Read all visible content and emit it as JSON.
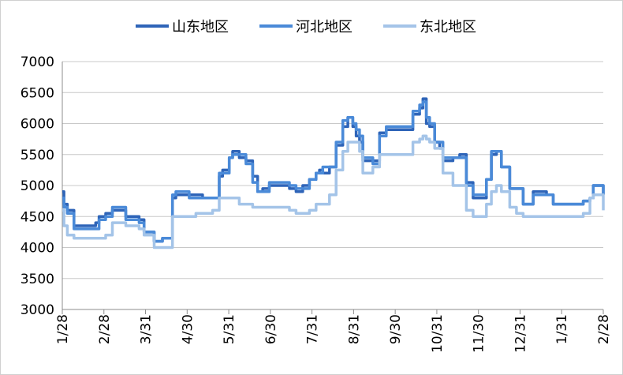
{
  "chart_data": {
    "type": "line",
    "title": "",
    "xlabel": "",
    "ylabel": "",
    "ylim": [
      3000,
      7000
    ],
    "y_ticks": [
      3000,
      3500,
      4000,
      4500,
      5000,
      5500,
      6000,
      6500,
      7000
    ],
    "x_tick_labels": [
      "1/28",
      "2/28",
      "3/31",
      "4/30",
      "5/31",
      "6/30",
      "7/31",
      "8/31",
      "9/30",
      "10/31",
      "11/30",
      "12/31",
      "1/31",
      "2/28"
    ],
    "grid": "horizontal",
    "legend_position": "top",
    "series": [
      {
        "name": "山东地区",
        "color": "#2e64b8",
        "values": [
          [
            0,
            4900
          ],
          [
            0.05,
            4700
          ],
          [
            0.15,
            4600
          ],
          [
            0.3,
            4600
          ],
          [
            0.35,
            4350
          ],
          [
            0.9,
            4350
          ],
          [
            1.0,
            4400
          ],
          [
            1.1,
            4500
          ],
          [
            1.3,
            4550
          ],
          [
            1.5,
            4600
          ],
          [
            1.7,
            4600
          ],
          [
            1.9,
            4500
          ],
          [
            2.3,
            4450
          ],
          [
            2.45,
            4250
          ],
          [
            2.6,
            4250
          ],
          [
            2.75,
            4100
          ],
          [
            3.0,
            4150
          ],
          [
            3.2,
            4150
          ],
          [
            3.3,
            4800
          ],
          [
            3.4,
            4850
          ],
          [
            3.6,
            4850
          ],
          [
            3.8,
            4850
          ],
          [
            4.0,
            4850
          ],
          [
            4.2,
            4800
          ],
          [
            4.5,
            4800
          ],
          [
            4.7,
            5150
          ],
          [
            4.8,
            5250
          ],
          [
            5.0,
            5450
          ],
          [
            5.1,
            5550
          ],
          [
            5.3,
            5450
          ],
          [
            5.5,
            5400
          ],
          [
            5.7,
            5150
          ],
          [
            5.85,
            4900
          ],
          [
            6.0,
            4950
          ],
          [
            6.2,
            5000
          ],
          [
            6.5,
            5000
          ],
          [
            6.8,
            4950
          ],
          [
            7.0,
            4900
          ],
          [
            7.2,
            5000
          ],
          [
            7.4,
            5100
          ],
          [
            7.6,
            5200
          ],
          [
            7.7,
            5250
          ],
          [
            7.8,
            5200
          ],
          [
            8.0,
            5300
          ],
          [
            8.2,
            5650
          ],
          [
            8.4,
            5950
          ],
          [
            8.55,
            6100
          ],
          [
            8.7,
            5950
          ],
          [
            8.8,
            5800
          ],
          [
            8.9,
            5700
          ],
          [
            9.0,
            5400
          ],
          [
            9.3,
            5400
          ],
          [
            9.5,
            5850
          ],
          [
            9.7,
            5900
          ],
          [
            10.0,
            5900
          ],
          [
            10.3,
            5900
          ],
          [
            10.5,
            6150
          ],
          [
            10.7,
            6250
          ],
          [
            10.8,
            6400
          ],
          [
            10.9,
            6000
          ],
          [
            11.0,
            5950
          ],
          [
            11.15,
            5700
          ],
          [
            11.3,
            5600
          ],
          [
            11.4,
            5400
          ],
          [
            11.7,
            5450
          ],
          [
            11.9,
            5500
          ],
          [
            12.1,
            5050
          ],
          [
            12.3,
            4800
          ],
          [
            12.55,
            4800
          ],
          [
            12.7,
            5100
          ],
          [
            12.85,
            5500
          ],
          [
            13.0,
            5550
          ],
          [
            13.15,
            5300
          ],
          [
            13.4,
            4950
          ],
          [
            13.6,
            4950
          ],
          [
            13.8,
            4700
          ],
          [
            14.0,
            4700
          ],
          [
            14.1,
            4900
          ],
          [
            14.3,
            4900
          ],
          [
            14.5,
            4850
          ],
          [
            14.7,
            4700
          ],
          [
            15.0,
            4700
          ],
          [
            15.3,
            4700
          ],
          [
            15.6,
            4750
          ],
          [
            15.8,
            4800
          ],
          [
            15.9,
            5000
          ],
          [
            16.05,
            5000
          ],
          [
            16.2,
            4850
          ]
        ]
      },
      {
        "name": "河北地区",
        "color": "#4a8ad8",
        "values": [
          [
            0,
            4800
          ],
          [
            0.05,
            4650
          ],
          [
            0.15,
            4550
          ],
          [
            0.3,
            4550
          ],
          [
            0.35,
            4300
          ],
          [
            0.9,
            4300
          ],
          [
            1.0,
            4300
          ],
          [
            1.1,
            4450
          ],
          [
            1.3,
            4500
          ],
          [
            1.5,
            4650
          ],
          [
            1.7,
            4650
          ],
          [
            1.9,
            4450
          ],
          [
            2.3,
            4400
          ],
          [
            2.45,
            4250
          ],
          [
            2.6,
            4250
          ],
          [
            2.75,
            4100
          ],
          [
            3.0,
            4150
          ],
          [
            3.2,
            4150
          ],
          [
            3.3,
            4850
          ],
          [
            3.4,
            4900
          ],
          [
            3.6,
            4900
          ],
          [
            3.8,
            4800
          ],
          [
            4.0,
            4800
          ],
          [
            4.2,
            4800
          ],
          [
            4.5,
            4800
          ],
          [
            4.7,
            5200
          ],
          [
            4.8,
            5200
          ],
          [
            5.0,
            5450
          ],
          [
            5.1,
            5500
          ],
          [
            5.3,
            5500
          ],
          [
            5.5,
            5350
          ],
          [
            5.7,
            5050
          ],
          [
            5.85,
            4900
          ],
          [
            6.0,
            4900
          ],
          [
            6.2,
            5050
          ],
          [
            6.5,
            5050
          ],
          [
            6.8,
            5000
          ],
          [
            7.0,
            4950
          ],
          [
            7.2,
            4950
          ],
          [
            7.4,
            5100
          ],
          [
            7.6,
            5200
          ],
          [
            7.7,
            5200
          ],
          [
            7.8,
            5300
          ],
          [
            8.0,
            5300
          ],
          [
            8.2,
            5700
          ],
          [
            8.4,
            6050
          ],
          [
            8.55,
            6100
          ],
          [
            8.7,
            6000
          ],
          [
            8.8,
            5900
          ],
          [
            8.9,
            5800
          ],
          [
            9.0,
            5450
          ],
          [
            9.3,
            5350
          ],
          [
            9.5,
            5800
          ],
          [
            9.7,
            5950
          ],
          [
            10.0,
            5950
          ],
          [
            10.3,
            5950
          ],
          [
            10.5,
            6200
          ],
          [
            10.7,
            6300
          ],
          [
            10.8,
            6350
          ],
          [
            10.9,
            6100
          ],
          [
            11.0,
            6000
          ],
          [
            11.15,
            5700
          ],
          [
            11.3,
            5700
          ],
          [
            11.4,
            5450
          ],
          [
            11.7,
            5450
          ],
          [
            11.9,
            5450
          ],
          [
            12.1,
            5000
          ],
          [
            12.3,
            4850
          ],
          [
            12.55,
            4850
          ],
          [
            12.7,
            5100
          ],
          [
            12.85,
            5550
          ],
          [
            13.0,
            5550
          ],
          [
            13.15,
            5300
          ],
          [
            13.4,
            4950
          ],
          [
            13.6,
            4950
          ],
          [
            13.8,
            4700
          ],
          [
            14.0,
            4700
          ],
          [
            14.1,
            4850
          ],
          [
            14.3,
            4850
          ],
          [
            14.5,
            4850
          ],
          [
            14.7,
            4700
          ],
          [
            15.0,
            4700
          ],
          [
            15.3,
            4700
          ],
          [
            15.6,
            4750
          ],
          [
            15.8,
            4800
          ],
          [
            15.9,
            5000
          ],
          [
            16.05,
            5000
          ],
          [
            16.2,
            4850
          ]
        ]
      },
      {
        "name": "东北地区",
        "color": "#a4c4e8",
        "values": [
          [
            0,
            4600
          ],
          [
            0.05,
            4350
          ],
          [
            0.15,
            4200
          ],
          [
            0.3,
            4200
          ],
          [
            0.35,
            4150
          ],
          [
            0.9,
            4150
          ],
          [
            1.0,
            4150
          ],
          [
            1.1,
            4150
          ],
          [
            1.3,
            4200
          ],
          [
            1.5,
            4400
          ],
          [
            1.7,
            4400
          ],
          [
            1.9,
            4350
          ],
          [
            2.3,
            4300
          ],
          [
            2.45,
            4200
          ],
          [
            2.6,
            4200
          ],
          [
            2.75,
            4000
          ],
          [
            3.0,
            4000
          ],
          [
            3.2,
            4000
          ],
          [
            3.3,
            4500
          ],
          [
            3.4,
            4500
          ],
          [
            3.6,
            4500
          ],
          [
            3.8,
            4500
          ],
          [
            4.0,
            4550
          ],
          [
            4.2,
            4550
          ],
          [
            4.5,
            4600
          ],
          [
            4.7,
            4800
          ],
          [
            4.8,
            4800
          ],
          [
            5.0,
            4800
          ],
          [
            5.1,
            4800
          ],
          [
            5.3,
            4700
          ],
          [
            5.5,
            4700
          ],
          [
            5.7,
            4650
          ],
          [
            5.85,
            4650
          ],
          [
            6.0,
            4650
          ],
          [
            6.2,
            4650
          ],
          [
            6.5,
            4650
          ],
          [
            6.8,
            4600
          ],
          [
            7.0,
            4550
          ],
          [
            7.2,
            4550
          ],
          [
            7.4,
            4600
          ],
          [
            7.6,
            4700
          ],
          [
            7.7,
            4700
          ],
          [
            7.8,
            4700
          ],
          [
            8.0,
            4850
          ],
          [
            8.2,
            5250
          ],
          [
            8.4,
            5550
          ],
          [
            8.55,
            5700
          ],
          [
            8.7,
            5700
          ],
          [
            8.8,
            5700
          ],
          [
            8.9,
            5550
          ],
          [
            9.0,
            5200
          ],
          [
            9.3,
            5300
          ],
          [
            9.5,
            5500
          ],
          [
            9.7,
            5500
          ],
          [
            10.0,
            5500
          ],
          [
            10.3,
            5500
          ],
          [
            10.5,
            5700
          ],
          [
            10.7,
            5750
          ],
          [
            10.8,
            5800
          ],
          [
            10.9,
            5750
          ],
          [
            11.0,
            5700
          ],
          [
            11.15,
            5600
          ],
          [
            11.3,
            5600
          ],
          [
            11.4,
            5200
          ],
          [
            11.7,
            5000
          ],
          [
            11.9,
            5000
          ],
          [
            12.1,
            4600
          ],
          [
            12.3,
            4500
          ],
          [
            12.55,
            4500
          ],
          [
            12.7,
            4700
          ],
          [
            12.85,
            4900
          ],
          [
            13.0,
            5000
          ],
          [
            13.15,
            4900
          ],
          [
            13.4,
            4650
          ],
          [
            13.6,
            4550
          ],
          [
            13.8,
            4500
          ],
          [
            14.0,
            4500
          ],
          [
            14.1,
            4500
          ],
          [
            14.3,
            4500
          ],
          [
            14.5,
            4500
          ],
          [
            14.7,
            4500
          ],
          [
            15.0,
            4500
          ],
          [
            15.3,
            4500
          ],
          [
            15.6,
            4550
          ],
          [
            15.8,
            4800
          ],
          [
            15.9,
            4850
          ],
          [
            16.05,
            4850
          ],
          [
            16.2,
            4600
          ]
        ]
      }
    ]
  }
}
